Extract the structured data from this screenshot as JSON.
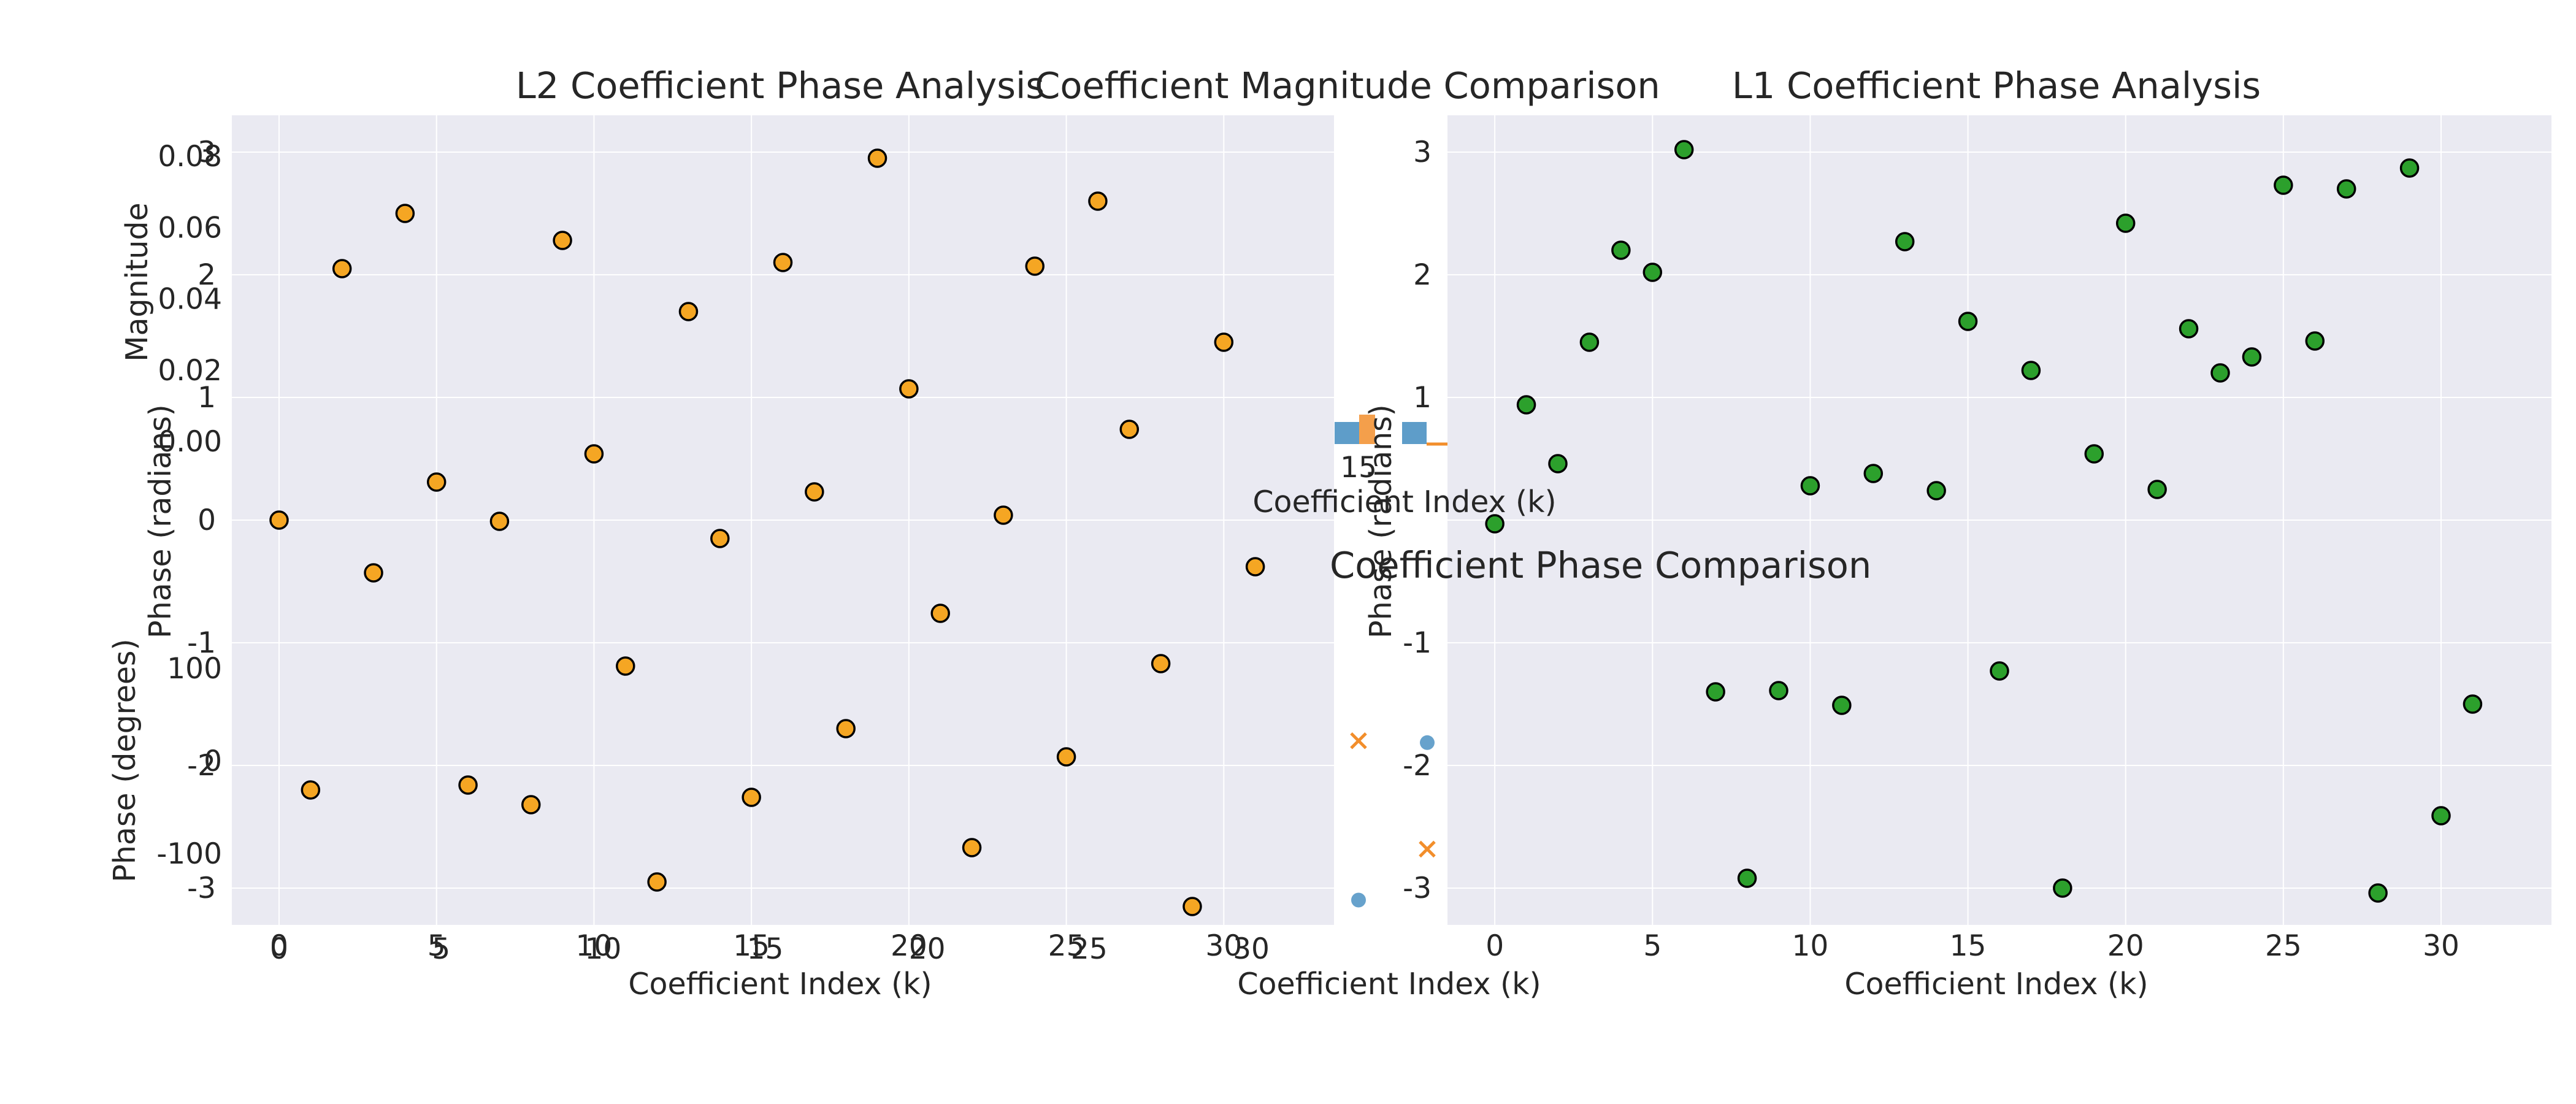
{
  "colors": {
    "l2_points": "#f5a623",
    "l1_points": "#2ca02c",
    "mag_series_a": "#4c92c3",
    "mag_series_b": "#f28e2b",
    "panel_background": "#eaeaf2",
    "marker_edge": "#000000"
  },
  "chart_data": [
    {
      "type": "scatter",
      "title": "L2 Coefficient Phase Analysis",
      "xlabel": "Coefficient Index (k)",
      "ylabel": "Phase (radians)",
      "xlim": [
        -1.5,
        33.5
      ],
      "ylim": [
        -3.3,
        3.3
      ],
      "xticks": [
        0,
        5,
        10,
        15,
        20,
        25,
        30
      ],
      "yticks": [
        -3,
        -2,
        -1,
        0,
        1,
        2,
        3
      ],
      "grid": true,
      "x": [
        0,
        1,
        2,
        3,
        4,
        5,
        6,
        7,
        8,
        9,
        10,
        11,
        12,
        13,
        14,
        15,
        16,
        17,
        18,
        19,
        20,
        21,
        22,
        23,
        24,
        25,
        26,
        27,
        28,
        29,
        30,
        31
      ],
      "y": [
        0.0,
        -2.2,
        2.05,
        -0.43,
        2.5,
        0.31,
        -2.16,
        -0.01,
        -2.32,
        2.28,
        0.54,
        -1.19,
        -2.95,
        1.7,
        -0.15,
        -2.26,
        2.1,
        0.23,
        -1.7,
        2.95,
        1.07,
        -0.76,
        -2.67,
        0.04,
        2.07,
        -1.93,
        2.6,
        0.74,
        -1.17,
        -3.15,
        1.45,
        -0.38
      ]
    },
    {
      "type": "scatter",
      "title": "Coefficient Magnitude Comparison",
      "xlabel": "Coefficient Index (k)",
      "ylabel": "Magnitude",
      "yticks": [
        0.0,
        0.02,
        0.04,
        0.06,
        0.08
      ],
      "xticks": [
        0,
        5,
        10,
        15,
        20,
        25,
        30
      ],
      "grid": true
    },
    {
      "type": "scatter",
      "title": "Coefficient Phase Comparison",
      "xlabel": "Coefficient Index (k)",
      "ylabel": "Phase (degrees)",
      "yticks": [
        -100,
        0,
        100
      ],
      "xticks": [
        0,
        5,
        10,
        15,
        20,
        25,
        30
      ],
      "grid": true,
      "series": [
        {
          "marker": "circle",
          "x": [
            15,
            17
          ],
          "y": [
            -150,
            20
          ]
        },
        {
          "marker": "x",
          "x": [
            15,
            17
          ],
          "y": [
            22,
            -95
          ]
        }
      ]
    },
    {
      "type": "scatter",
      "title": "L1 Coefficient Phase Analysis",
      "xlabel": "Coefficient Index (k)",
      "ylabel": "Phase (radians)",
      "xlim": [
        -1.5,
        33.5
      ],
      "ylim": [
        -3.3,
        3.3
      ],
      "xticks": [
        0,
        5,
        10,
        15,
        20,
        25,
        30
      ],
      "yticks": [
        -3,
        -2,
        -1,
        0,
        1,
        2,
        3
      ],
      "grid": true,
      "x": [
        0,
        1,
        2,
        3,
        4,
        5,
        6,
        7,
        8,
        9,
        10,
        11,
        12,
        13,
        14,
        15,
        16,
        17,
        18,
        19,
        20,
        21,
        22,
        23,
        24,
        25,
        26,
        27,
        28,
        29,
        30,
        31
      ],
      "y": [
        -0.03,
        0.94,
        0.46,
        1.45,
        2.2,
        2.02,
        3.02,
        -1.4,
        -2.92,
        -1.39,
        0.28,
        -1.51,
        0.38,
        2.27,
        0.24,
        1.62,
        -1.23,
        1.22,
        -3.0,
        0.54,
        2.42,
        0.25,
        1.56,
        1.2,
        1.33,
        2.73,
        1.46,
        2.7,
        -3.04,
        2.87,
        -2.41,
        -1.5
      ]
    }
  ]
}
